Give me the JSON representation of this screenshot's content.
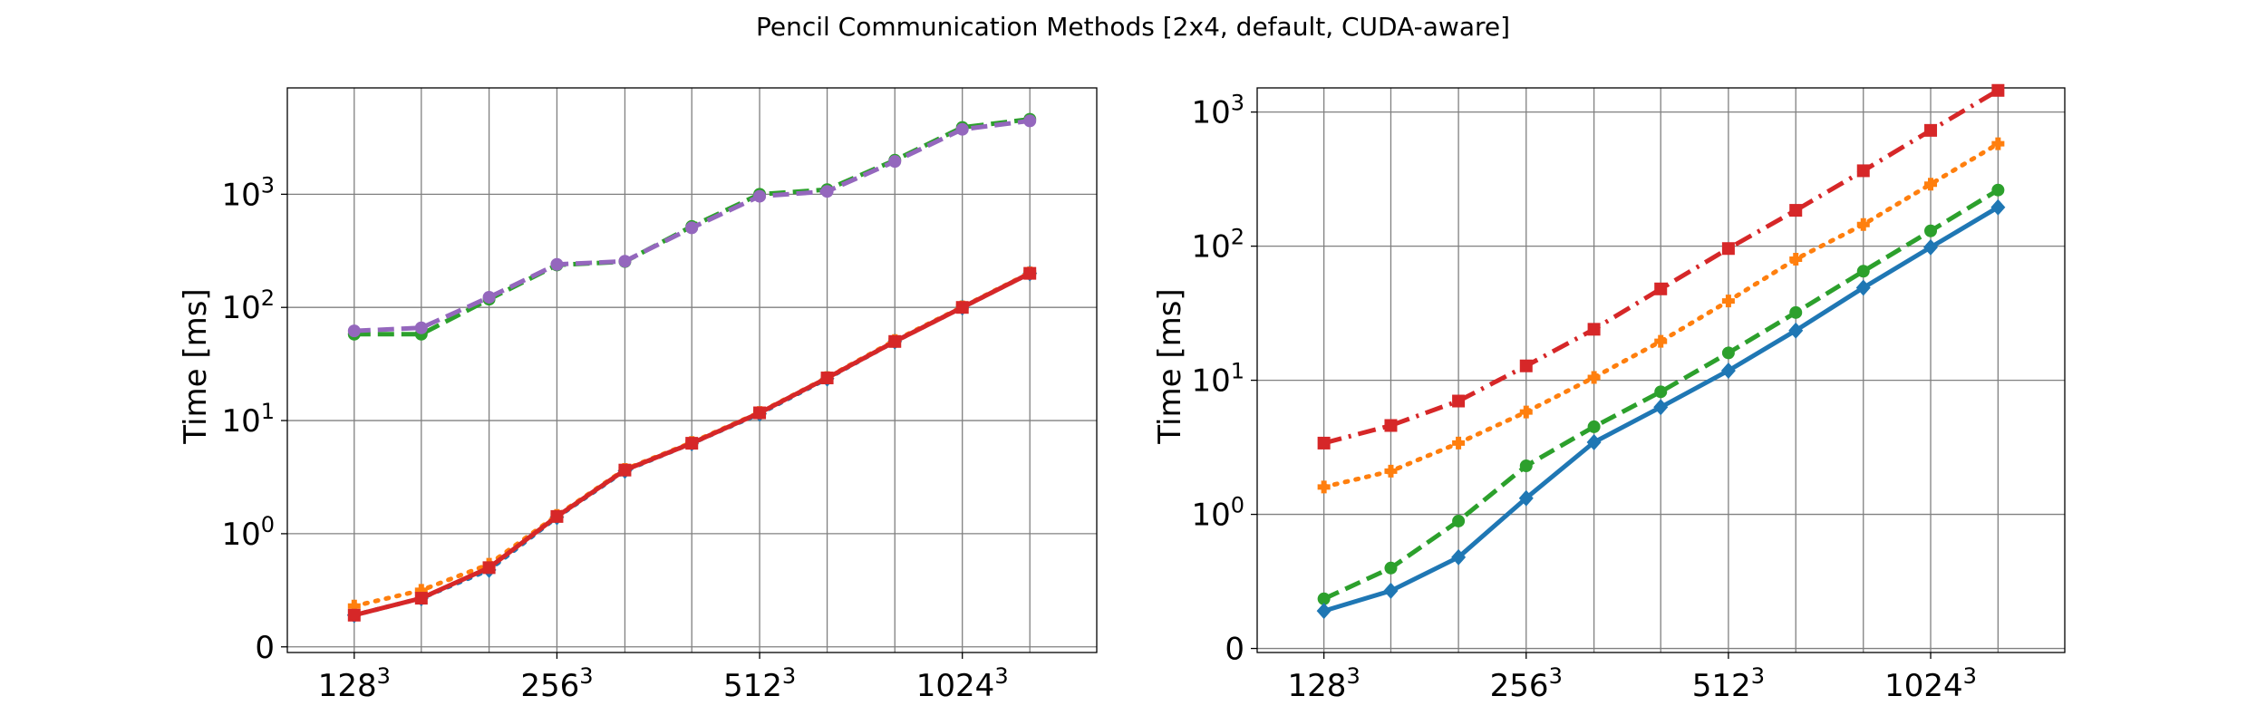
{
  "figure": {
    "title": "Pencil Communication Methods [2x4, default, CUDA-aware]"
  },
  "chart_data": [
    {
      "type": "line",
      "title": "",
      "xlabel": "",
      "ylabel": "Time [ms]",
      "yscale": "symlog",
      "grid": true,
      "x": [
        128,
        161,
        203,
        256,
        323,
        406,
        512,
        645,
        813,
        1024,
        1290
      ],
      "xticks": [
        {
          "value": 128,
          "base": "128",
          "exp": "3"
        },
        {
          "value": 256,
          "base": "256",
          "exp": "3"
        },
        {
          "value": 512,
          "base": "512",
          "exp": "3"
        },
        {
          "value": 1024,
          "base": "1024",
          "exp": "3"
        }
      ],
      "yticks": [
        {
          "value": 0,
          "base": "0",
          "exp": ""
        },
        {
          "value": 1,
          "base": "10",
          "exp": "0"
        },
        {
          "value": 10,
          "base": "10",
          "exp": "1"
        },
        {
          "value": 100,
          "base": "10",
          "exp": "2"
        },
        {
          "value": 1000,
          "base": "10",
          "exp": "3"
        }
      ],
      "series": [
        {
          "color": "#2ca02c",
          "linestyle": "dashed",
          "marker": "circle",
          "values": [
            58,
            58,
            118,
            237,
            254,
            520,
            1000,
            1100,
            2000,
            3900,
            4600
          ]
        },
        {
          "color": "#9467bd",
          "linestyle": "dashed",
          "marker": "circle",
          "values": [
            62,
            66,
            123,
            240,
            256,
            505,
            960,
            1060,
            1950,
            3750,
            4450
          ]
        },
        {
          "color": "#1f77b4",
          "linestyle": "dotted",
          "marker": "diamond",
          "values": [
            0.28,
            0.43,
            0.68,
            1.4,
            3.6,
            6.3,
            11.5,
            23.5,
            50,
            100,
            200
          ]
        },
        {
          "color": "#ff7f0e",
          "linestyle": "dotted",
          "marker": "plus",
          "values": [
            0.36,
            0.5,
            0.73,
            1.45,
            3.7,
            6.4,
            11.8,
            24,
            51,
            101,
            202
          ]
        },
        {
          "color": "#d62728",
          "linestyle": "solid",
          "marker": "square",
          "values": [
            0.28,
            0.43,
            0.7,
            1.42,
            3.65,
            6.3,
            11.7,
            23.8,
            50,
            100,
            200
          ]
        }
      ]
    },
    {
      "type": "line",
      "title": "",
      "xlabel": "",
      "ylabel": "Time [ms]",
      "yscale": "symlog",
      "grid": true,
      "x": [
        128,
        161,
        203,
        256,
        323,
        406,
        512,
        645,
        813,
        1024,
        1290
      ],
      "xticks": [
        {
          "value": 128,
          "base": "128",
          "exp": "3"
        },
        {
          "value": 256,
          "base": "256",
          "exp": "3"
        },
        {
          "value": 512,
          "base": "512",
          "exp": "3"
        },
        {
          "value": 1024,
          "base": "1024",
          "exp": "3"
        }
      ],
      "yticks": [
        {
          "value": 0,
          "base": "0",
          "exp": ""
        },
        {
          "value": 1,
          "base": "10",
          "exp": "0"
        },
        {
          "value": 10,
          "base": "10",
          "exp": "1"
        },
        {
          "value": 100,
          "base": "10",
          "exp": "2"
        },
        {
          "value": 1000,
          "base": "10",
          "exp": "3"
        }
      ],
      "series": [
        {
          "color": "#d62728",
          "linestyle": "dashdot",
          "marker": "square",
          "values": [
            3.4,
            4.6,
            7.0,
            12.8,
            24,
            48,
            96,
            185,
            365,
            730,
            1450
          ]
        },
        {
          "color": "#ff7f0e",
          "linestyle": "dotted",
          "marker": "plus",
          "values": [
            1.6,
            2.1,
            3.4,
            5.8,
            10.5,
            19.5,
            39,
            80,
            145,
            290,
            580
          ]
        },
        {
          "color": "#2ca02c",
          "linestyle": "dashed",
          "marker": "circle",
          "values": [
            0.37,
            0.6,
            0.95,
            2.3,
            4.5,
            8.2,
            16,
            32,
            65,
            130,
            262
          ]
        },
        {
          "color": "#1f77b4",
          "linestyle": "solid",
          "marker": "diamond",
          "values": [
            0.28,
            0.43,
            0.68,
            1.32,
            3.45,
            6.3,
            11.8,
            23.5,
            49,
            98,
            195
          ]
        }
      ]
    }
  ]
}
